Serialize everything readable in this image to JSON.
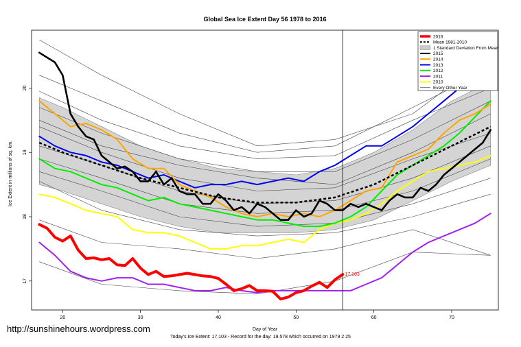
{
  "page": {
    "watermark": "http://sunshinehours.wordpress.com",
    "footer": "Today's Ice Extent: 17.103  - Record for the day: 19.578 which occurred on 1979 2 25"
  },
  "chart_data": {
    "type": "line",
    "title": "Global Sea Ice Extent Day 56 1978 to 2016",
    "xlabel": "Day of Year",
    "ylabel": "Ice Extent in millions of sq. km.",
    "xlim": [
      16,
      76
    ],
    "ylim": [
      16.55,
      20.9
    ],
    "xticks": [
      20,
      30,
      40,
      50,
      60,
      70
    ],
    "yticks": [
      17,
      18,
      19,
      20
    ],
    "current_day": 56,
    "current_value_label": "17.103",
    "legend": {
      "position": "top-right",
      "entries": [
        {
          "label": "2016",
          "color": "#ff0000",
          "style": "thick"
        },
        {
          "label": "Mean 1981-2010",
          "color": "#000000",
          "style": "dashed"
        },
        {
          "label": "1 Standard Deviation From Mean",
          "color": "#cccccc",
          "style": "box"
        },
        {
          "label": "2015",
          "color": "#000000",
          "style": "solid"
        },
        {
          "label": "2014",
          "color": "#ffa500",
          "style": "solid"
        },
        {
          "label": "2013",
          "color": "#0000ee",
          "style": "solid"
        },
        {
          "label": "2012",
          "color": "#00ee00",
          "style": "solid"
        },
        {
          "label": "2011",
          "color": "#a020f0",
          "style": "solid"
        },
        {
          "label": "2010",
          "color": "#ffff00",
          "style": "solid"
        },
        {
          "label": "Every Other Year",
          "color": "#555555",
          "style": "thin"
        }
      ]
    },
    "band": {
      "name": "1 Standard Deviation From Mean",
      "x": [
        17,
        20,
        25,
        30,
        35,
        40,
        45,
        50,
        55,
        60,
        65,
        70,
        75
      ],
      "upper": [
        19.85,
        19.7,
        19.4,
        19.1,
        18.9,
        18.75,
        18.7,
        18.65,
        18.75,
        19.0,
        19.35,
        19.8,
        20.1
      ],
      "lower": [
        18.5,
        18.4,
        18.2,
        18.0,
        17.85,
        17.75,
        17.75,
        17.75,
        17.8,
        17.95,
        18.25,
        18.55,
        18.8
      ]
    },
    "mean": {
      "name": "Mean 1981-2010",
      "x": [
        17,
        20,
        25,
        30,
        35,
        40,
        45,
        50,
        55,
        60,
        65,
        70,
        75
      ],
      "values": [
        19.15,
        19.0,
        18.8,
        18.6,
        18.45,
        18.3,
        18.22,
        18.22,
        18.3,
        18.5,
        18.8,
        19.1,
        19.4
      ]
    },
    "series": [
      {
        "name": "2016",
        "color": "#ff0000",
        "width": 4,
        "x": [
          17,
          18,
          19,
          20,
          21,
          22,
          23,
          24,
          25,
          26,
          27,
          28,
          29,
          30,
          31,
          32,
          33,
          34,
          35,
          36,
          37,
          38,
          39,
          40,
          41,
          42,
          43,
          44,
          45,
          46,
          47,
          48,
          49,
          50,
          51,
          52,
          53,
          54,
          55,
          56
        ],
        "values": [
          17.88,
          17.82,
          17.68,
          17.62,
          17.7,
          17.48,
          17.35,
          17.36,
          17.33,
          17.35,
          17.25,
          17.24,
          17.35,
          17.2,
          17.1,
          17.15,
          17.07,
          17.08,
          17.1,
          17.12,
          17.1,
          17.08,
          17.07,
          17.04,
          16.95,
          16.85,
          16.88,
          16.93,
          16.85,
          16.85,
          16.84,
          16.72,
          16.75,
          16.82,
          16.85,
          16.92,
          16.98,
          16.9,
          17.02,
          17.103
        ]
      },
      {
        "name": "2015",
        "color": "#000000",
        "width": 2.6,
        "x": [
          17,
          19,
          20,
          21,
          22,
          23,
          24,
          25,
          26,
          27,
          28,
          29,
          30,
          31,
          32,
          33,
          34,
          35,
          36,
          37,
          38,
          39,
          40,
          41,
          42,
          43,
          44,
          45,
          46,
          47,
          48,
          49,
          50,
          51,
          52,
          53,
          54,
          55,
          56,
          57,
          58,
          59,
          60,
          61,
          62,
          63,
          64,
          65,
          66,
          67,
          68,
          69,
          70,
          72,
          74,
          75
        ],
        "values": [
          20.55,
          20.4,
          20.2,
          19.6,
          19.4,
          19.25,
          19.2,
          18.95,
          18.85,
          18.75,
          18.78,
          18.7,
          18.55,
          18.55,
          18.7,
          18.5,
          18.6,
          18.4,
          18.35,
          18.35,
          18.2,
          18.2,
          18.35,
          18.25,
          18.1,
          18.15,
          18.05,
          18.2,
          18.15,
          18.05,
          17.95,
          17.95,
          18.1,
          18.0,
          18.05,
          18.25,
          18.2,
          18.1,
          18.1,
          18.2,
          18.15,
          18.2,
          18.15,
          18.1,
          18.25,
          18.35,
          18.3,
          18.3,
          18.45,
          18.4,
          18.5,
          18.65,
          18.75,
          18.95,
          19.15,
          19.35
        ]
      },
      {
        "name": "2014",
        "color": "#ffa500",
        "width": 2,
        "x": [
          17,
          19,
          21,
          23,
          25,
          27,
          29,
          31,
          33,
          35,
          37,
          39,
          41,
          43,
          45,
          47,
          49,
          51,
          53,
          55,
          57,
          59,
          61,
          63,
          65,
          67,
          69,
          71,
          73,
          75
        ],
        "values": [
          19.8,
          19.6,
          19.4,
          19.45,
          19.35,
          19.2,
          18.9,
          18.75,
          18.75,
          18.5,
          18.4,
          18.3,
          18.15,
          18.05,
          18.0,
          18.05,
          18.0,
          18.05,
          18.0,
          18.1,
          18.25,
          18.4,
          18.45,
          18.85,
          18.95,
          19.05,
          19.3,
          19.5,
          19.6,
          19.75
        ]
      },
      {
        "name": "2013",
        "color": "#0000ee",
        "width": 2,
        "x": [
          17,
          19,
          21,
          23,
          25,
          27,
          29,
          31,
          33,
          35,
          37,
          39,
          41,
          43,
          45,
          47,
          49,
          51,
          53,
          55,
          57,
          59,
          61,
          63,
          65,
          67,
          69,
          71,
          73,
          75
        ],
        "values": [
          19.25,
          19.1,
          19.0,
          18.95,
          18.85,
          18.8,
          18.7,
          18.6,
          18.65,
          18.55,
          18.45,
          18.5,
          18.5,
          18.55,
          18.5,
          18.55,
          18.6,
          18.55,
          18.7,
          18.8,
          18.95,
          19.1,
          19.1,
          19.25,
          19.4,
          19.6,
          19.8,
          20.0,
          20.1,
          20.15
        ]
      },
      {
        "name": "2012",
        "color": "#00ee00",
        "width": 2,
        "x": [
          17,
          19,
          21,
          23,
          25,
          27,
          29,
          31,
          33,
          35,
          37,
          39,
          41,
          43,
          45,
          47,
          49,
          51,
          53,
          55,
          57,
          59,
          61,
          63,
          65,
          67,
          69,
          71,
          73,
          75
        ],
        "values": [
          18.9,
          18.75,
          18.7,
          18.6,
          18.5,
          18.45,
          18.35,
          18.25,
          18.3,
          18.2,
          18.15,
          18.1,
          18.05,
          18.0,
          17.95,
          17.95,
          17.9,
          17.85,
          17.85,
          17.9,
          18.0,
          18.15,
          18.4,
          18.65,
          18.8,
          18.95,
          19.1,
          19.3,
          19.55,
          19.8
        ]
      },
      {
        "name": "2011",
        "color": "#a020f0",
        "width": 2,
        "x": [
          17,
          19,
          21,
          23,
          25,
          27,
          29,
          31,
          33,
          35,
          37,
          39,
          41,
          43,
          45,
          47,
          49,
          51,
          53,
          55,
          57,
          59,
          61,
          63,
          65,
          67,
          69,
          71,
          73,
          75
        ],
        "values": [
          17.6,
          17.4,
          17.15,
          17.05,
          17.0,
          17.05,
          17.05,
          16.95,
          16.95,
          16.9,
          16.85,
          16.85,
          16.9,
          16.85,
          16.82,
          16.85,
          16.85,
          16.85,
          16.85,
          16.85,
          16.85,
          16.95,
          17.05,
          17.25,
          17.45,
          17.6,
          17.7,
          17.8,
          17.9,
          18.05
        ]
      },
      {
        "name": "2010",
        "color": "#ffff00",
        "width": 2,
        "x": [
          17,
          19,
          21,
          23,
          25,
          27,
          29,
          31,
          33,
          35,
          37,
          39,
          41,
          43,
          45,
          47,
          49,
          51,
          53,
          55,
          57,
          59,
          61,
          63,
          65,
          67,
          69,
          71,
          73,
          75
        ],
        "values": [
          18.35,
          18.3,
          18.2,
          18.1,
          18.05,
          18.0,
          17.8,
          17.75,
          17.75,
          17.7,
          17.6,
          17.5,
          17.5,
          17.55,
          17.55,
          17.6,
          17.65,
          17.6,
          17.8,
          17.9,
          17.95,
          18.05,
          18.2,
          18.4,
          18.55,
          18.7,
          18.75,
          18.8,
          18.85,
          18.95
        ]
      }
    ],
    "every_other_year": [
      {
        "x": [
          17,
          25,
          35,
          45,
          55,
          65,
          75
        ],
        "values": [
          20.75,
          20.2,
          19.6,
          19.1,
          19.2,
          19.6,
          20.5
        ]
      },
      {
        "x": [
          17,
          25,
          35,
          45,
          55,
          65,
          75
        ],
        "values": [
          20.2,
          19.8,
          19.3,
          19.0,
          19.1,
          19.7,
          20.3
        ]
      },
      {
        "x": [
          17,
          25,
          35,
          45,
          55,
          65,
          75
        ],
        "values": [
          19.95,
          19.5,
          19.1,
          18.9,
          18.95,
          19.5,
          20.0
        ]
      },
      {
        "x": [
          17,
          25,
          35,
          45,
          55,
          65,
          75
        ],
        "values": [
          19.7,
          19.3,
          18.9,
          18.7,
          18.7,
          19.2,
          19.8
        ]
      },
      {
        "x": [
          17,
          25,
          35,
          45,
          55,
          65,
          75
        ],
        "values": [
          19.5,
          19.1,
          18.8,
          18.6,
          18.5,
          19.0,
          19.6
        ]
      },
      {
        "x": [
          17,
          25,
          35,
          45,
          55,
          65,
          75
        ],
        "values": [
          19.4,
          19.0,
          18.6,
          18.4,
          18.45,
          18.9,
          19.3
        ]
      },
      {
        "x": [
          17,
          25,
          35,
          45,
          55,
          65,
          75
        ],
        "values": [
          19.1,
          18.8,
          18.4,
          18.2,
          18.25,
          18.6,
          19.1
        ]
      },
      {
        "x": [
          17,
          25,
          35,
          45,
          55,
          65,
          75
        ],
        "values": [
          18.9,
          18.6,
          18.2,
          18.05,
          18.1,
          18.4,
          18.9
        ]
      },
      {
        "x": [
          17,
          25,
          35,
          45,
          55,
          65,
          75
        ],
        "values": [
          18.7,
          18.4,
          18.0,
          17.85,
          17.9,
          18.2,
          18.6
        ]
      },
      {
        "x": [
          17,
          25,
          35,
          45,
          55,
          65,
          75
        ],
        "values": [
          18.55,
          18.1,
          17.8,
          17.7,
          17.75,
          18.0,
          18.35
        ]
      },
      {
        "x": [
          17,
          25,
          35,
          45,
          55,
          65,
          75
        ],
        "values": [
          17.95,
          17.6,
          17.5,
          17.35,
          17.5,
          17.8,
          17.4
        ]
      },
      {
        "x": [
          17,
          25,
          35,
          45,
          55,
          65,
          75
        ],
        "values": [
          17.3,
          16.95,
          16.85,
          16.8,
          17.0,
          17.45,
          17.4
        ]
      }
    ]
  }
}
